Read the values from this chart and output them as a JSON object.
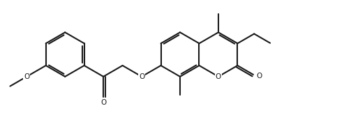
{
  "bg_color": "#ffffff",
  "line_color": "#1a1a1a",
  "line_width": 1.5,
  "figsize": [
    4.93,
    1.72
  ],
  "dpi": 100,
  "xlim": [
    0,
    9.3
  ],
  "ylim": [
    0,
    3.2
  ]
}
